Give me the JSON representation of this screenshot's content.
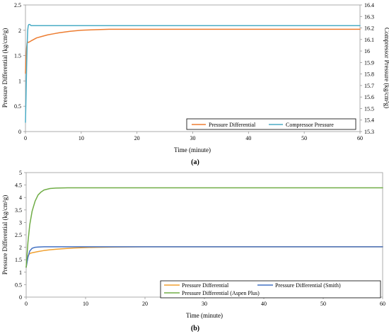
{
  "chart_data": [
    {
      "panel_label": "(a)",
      "type": "line",
      "xlabel": "Time (minute)",
      "ylabel": "Pressure Differential (kg/cm²g)",
      "y2label": "Compressor Pressure (kg/cm²g)",
      "xlim": [
        0,
        60
      ],
      "ylim": [
        0,
        2.5
      ],
      "y2lim": [
        15.3,
        16.4
      ],
      "xticks": [
        0,
        10,
        20,
        30,
        40,
        50,
        60
      ],
      "yticks": [
        "0",
        "0.5",
        "1",
        "1.5",
        "2",
        "2.5"
      ],
      "y2ticks": [
        "15.3",
        "15.4",
        "15.5",
        "15.6",
        "15.7",
        "15.8",
        "15.9",
        "16",
        "16.1",
        "16.2",
        "16.3",
        "16.4"
      ],
      "grid": false,
      "legend_position": "bottom-right",
      "series": [
        {
          "name": "Pressure Differential",
          "color": "#ED7D31",
          "axis": "left",
          "x": [
            0,
            0.1,
            0.2,
            0.3,
            0.4,
            0.5,
            0.7,
            1,
            1.5,
            2,
            3,
            4,
            5,
            6,
            8,
            10,
            12,
            15,
            20,
            25,
            30,
            40,
            50,
            60
          ],
          "y": [
            1.15,
            1.45,
            1.65,
            1.75,
            1.77,
            1.76,
            1.77,
            1.79,
            1.82,
            1.85,
            1.88,
            1.91,
            1.93,
            1.95,
            1.98,
            2.0,
            2.01,
            2.02,
            2.02,
            2.02,
            2.02,
            2.02,
            2.02,
            2.02
          ]
        },
        {
          "name": "Compressor Pressure",
          "color": "#4BACC6",
          "axis": "right",
          "x": [
            0,
            0.1,
            0.2,
            0.3,
            0.4,
            0.5,
            0.6,
            0.8,
            1.0,
            1.2,
            1.5,
            2,
            5,
            10,
            20,
            30,
            40,
            50,
            60
          ],
          "y": [
            15.38,
            15.6,
            15.85,
            16.05,
            16.18,
            16.22,
            16.23,
            16.23,
            16.22,
            16.22,
            16.22,
            16.22,
            16.22,
            16.22,
            16.22,
            16.22,
            16.22,
            16.22,
            16.22
          ]
        }
      ]
    },
    {
      "panel_label": "(b)",
      "type": "line",
      "xlabel": "Time (minute)",
      "ylabel": "Pressure Differential (kg/cm²g)",
      "xlim": [
        0,
        60
      ],
      "ylim": [
        0,
        5
      ],
      "xticks": [
        0,
        10,
        20,
        30,
        40,
        50,
        60
      ],
      "yticks": [
        "0",
        "0.5",
        "1",
        "1.5",
        "2",
        "2.5",
        "3",
        "3.5",
        "4",
        "4.5",
        "5"
      ],
      "grid": false,
      "legend_position": "bottom-right",
      "series": [
        {
          "name": "Pressure Differential",
          "color": "#F0A030",
          "x": [
            0,
            0.3,
            0.6,
            1,
            2,
            3,
            4,
            5,
            6,
            8,
            10,
            12,
            15,
            20,
            30,
            40,
            50,
            60
          ],
          "y": [
            1.2,
            1.65,
            1.75,
            1.78,
            1.83,
            1.87,
            1.9,
            1.92,
            1.94,
            1.97,
            1.99,
            2.0,
            2.01,
            2.02,
            2.02,
            2.02,
            2.02,
            2.02
          ]
        },
        {
          "name": "Pressure Differential (Smith)",
          "color": "#4472C4",
          "x": [
            0,
            0.3,
            0.6,
            1,
            1.5,
            2,
            3,
            5,
            10,
            20,
            30,
            40,
            50,
            60
          ],
          "y": [
            1.2,
            1.6,
            1.85,
            1.96,
            2.0,
            2.01,
            2.02,
            2.02,
            2.02,
            2.02,
            2.02,
            2.02,
            2.02,
            2.02
          ]
        },
        {
          "name": "Pressure Differential (Aspen Plus)",
          "color": "#70AD47",
          "x": [
            0,
            0.3,
            0.6,
            1,
            1.5,
            2,
            2.5,
            3,
            4,
            5,
            7,
            10,
            20,
            30,
            40,
            50,
            60
          ],
          "y": [
            1.2,
            2.2,
            2.9,
            3.45,
            3.85,
            4.1,
            4.22,
            4.3,
            4.36,
            4.38,
            4.39,
            4.39,
            4.39,
            4.39,
            4.39,
            4.39,
            4.39
          ]
        }
      ]
    }
  ]
}
